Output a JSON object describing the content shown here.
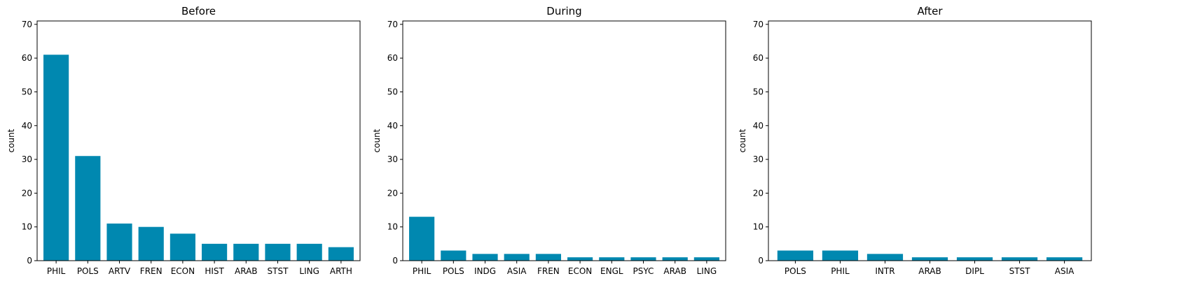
{
  "figure": {
    "background": "#ffffff",
    "bar_color": "#0088b0"
  },
  "chart_data": [
    {
      "type": "bar",
      "title": "Before",
      "xlabel": "",
      "ylabel": "count",
      "ylim": [
        0,
        71
      ],
      "yticks": [
        0,
        10,
        20,
        30,
        40,
        50,
        60,
        70
      ],
      "grid": false,
      "categories": [
        "PHIL",
        "POLS",
        "ARTV",
        "FREN",
        "ECON",
        "HIST",
        "ARAB",
        "STST",
        "LING",
        "ARTH"
      ],
      "values": [
        61,
        31,
        11,
        10,
        8,
        5,
        5,
        5,
        5,
        4
      ]
    },
    {
      "type": "bar",
      "title": "During",
      "xlabel": "",
      "ylabel": "count",
      "ylim": [
        0,
        71
      ],
      "yticks": [
        0,
        10,
        20,
        30,
        40,
        50,
        60,
        70
      ],
      "grid": false,
      "categories": [
        "PHIL",
        "POLS",
        "INDG",
        "ASIA",
        "FREN",
        "ECON",
        "ENGL",
        "PSYC",
        "ARAB",
        "LING"
      ],
      "values": [
        13,
        3,
        2,
        2,
        2,
        1,
        1,
        1,
        1,
        1
      ]
    },
    {
      "type": "bar",
      "title": "After",
      "xlabel": "",
      "ylabel": "count",
      "ylim": [
        0,
        71
      ],
      "yticks": [
        0,
        10,
        20,
        30,
        40,
        50,
        60,
        70
      ],
      "grid": false,
      "categories": [
        "POLS",
        "PHIL",
        "INTR",
        "ARAB",
        "DIPL",
        "STST",
        "ASIA"
      ],
      "values": [
        3,
        3,
        2,
        1,
        1,
        1,
        1
      ]
    }
  ]
}
